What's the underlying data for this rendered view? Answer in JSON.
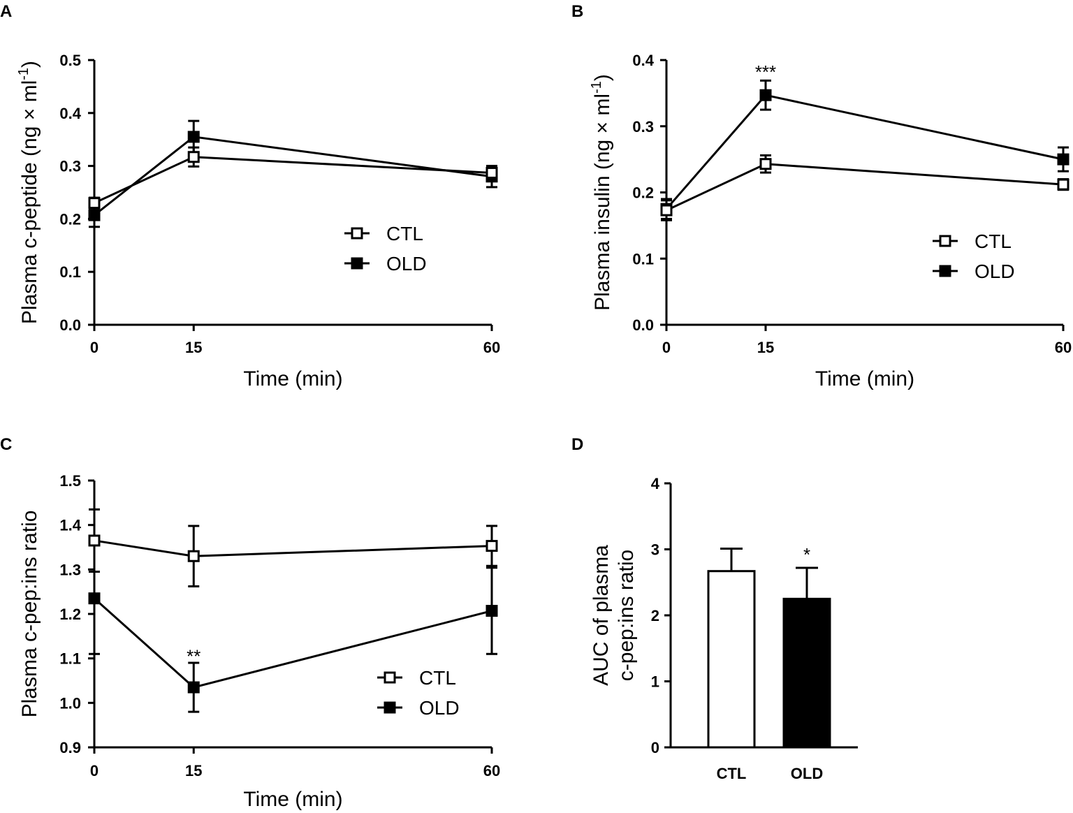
{
  "chart_data": [
    {
      "panel": "A",
      "type": "line",
      "xlabel": "Time (min)",
      "ylabel": "Plasma c-peptide (ng × ml",
      "ylabel_sup": "-1",
      "ylabel_tail": ")",
      "x": [
        0,
        15,
        60
      ],
      "x_tick_labels": [
        "0",
        "15",
        "60"
      ],
      "ylim": [
        0,
        0.5
      ],
      "y_ticks": [
        "0.0",
        "0.1",
        "0.2",
        "0.3",
        "0.4",
        "0.5"
      ],
      "series": [
        {
          "name": "CTL",
          "marker": "open-square",
          "values": [
            0.23,
            0.317,
            0.287
          ],
          "err": [
            0.01,
            0.018,
            0.013
          ]
        },
        {
          "name": "OLD",
          "marker": "filled-square",
          "values": [
            0.207,
            0.355,
            0.28
          ],
          "err": [
            0.022,
            0.03,
            0.02
          ]
        }
      ],
      "annotations": [],
      "legend": {
        "position": "center-right",
        "entries": [
          "CTL",
          "OLD"
        ]
      }
    },
    {
      "panel": "B",
      "type": "line",
      "xlabel": "Time (min)",
      "ylabel": "Plasma insulin (ng × ml",
      "ylabel_sup": "-1",
      "ylabel_tail": ")",
      "x": [
        0,
        15,
        60
      ],
      "x_tick_labels": [
        "0",
        "15",
        "60"
      ],
      "ylim": [
        0,
        0.4
      ],
      "y_ticks": [
        "0.0",
        "0.1",
        "0.2",
        "0.3",
        "0.4"
      ],
      "series": [
        {
          "name": "CTL",
          "marker": "open-square",
          "values": [
            0.173,
            0.243,
            0.212
          ],
          "err": [
            0.015,
            0.013,
            0.008
          ]
        },
        {
          "name": "OLD",
          "marker": "filled-square",
          "values": [
            0.175,
            0.347,
            0.25
          ],
          "err": [
            0.015,
            0.022,
            0.018
          ]
        }
      ],
      "annotations": [
        {
          "text": "***",
          "x": 15,
          "y": 0.385
        }
      ],
      "legend": {
        "position": "lower-right",
        "entries": [
          "CTL",
          "OLD"
        ]
      }
    },
    {
      "panel": "C",
      "type": "line",
      "xlabel": "Time (min)",
      "ylabel": "Plasma c-pep:ins ratio",
      "x": [
        0,
        15,
        60
      ],
      "x_tick_labels": [
        "0",
        "15",
        "60"
      ],
      "ylim": [
        0.9,
        1.5
      ],
      "y_ticks": [
        "0.9",
        "1.0",
        "1.1",
        "1.2",
        "1.3",
        "1.4",
        "1.5"
      ],
      "series": [
        {
          "name": "CTL",
          "marker": "open-square",
          "values": [
            1.365,
            1.33,
            1.353
          ],
          "err": [
            0.07,
            0.068,
            0.045
          ]
        },
        {
          "name": "OLD",
          "marker": "filled-square",
          "values": [
            1.235,
            1.035,
            1.207
          ],
          "err": [
            0.125,
            0.055,
            0.097
          ]
        }
      ],
      "annotations": [
        {
          "text": "**",
          "x": 15,
          "y": 1.11
        }
      ],
      "legend": {
        "position": "lower-right",
        "entries": [
          "CTL",
          "OLD"
        ]
      }
    },
    {
      "panel": "D",
      "type": "bar",
      "ylabel_line1": "AUC of plasma",
      "ylabel_line2": "c-pep:ins ratio",
      "categories": [
        "CTL",
        "OLD"
      ],
      "values": [
        2.67,
        2.25
      ],
      "err": [
        0.34,
        0.47
      ],
      "fills": [
        "#ffffff",
        "#000000"
      ],
      "ylim": [
        0,
        4
      ],
      "y_ticks": [
        "0",
        "1",
        "2",
        "3",
        "4"
      ],
      "annotations": [
        {
          "text": "*",
          "bar": 1
        }
      ]
    }
  ]
}
